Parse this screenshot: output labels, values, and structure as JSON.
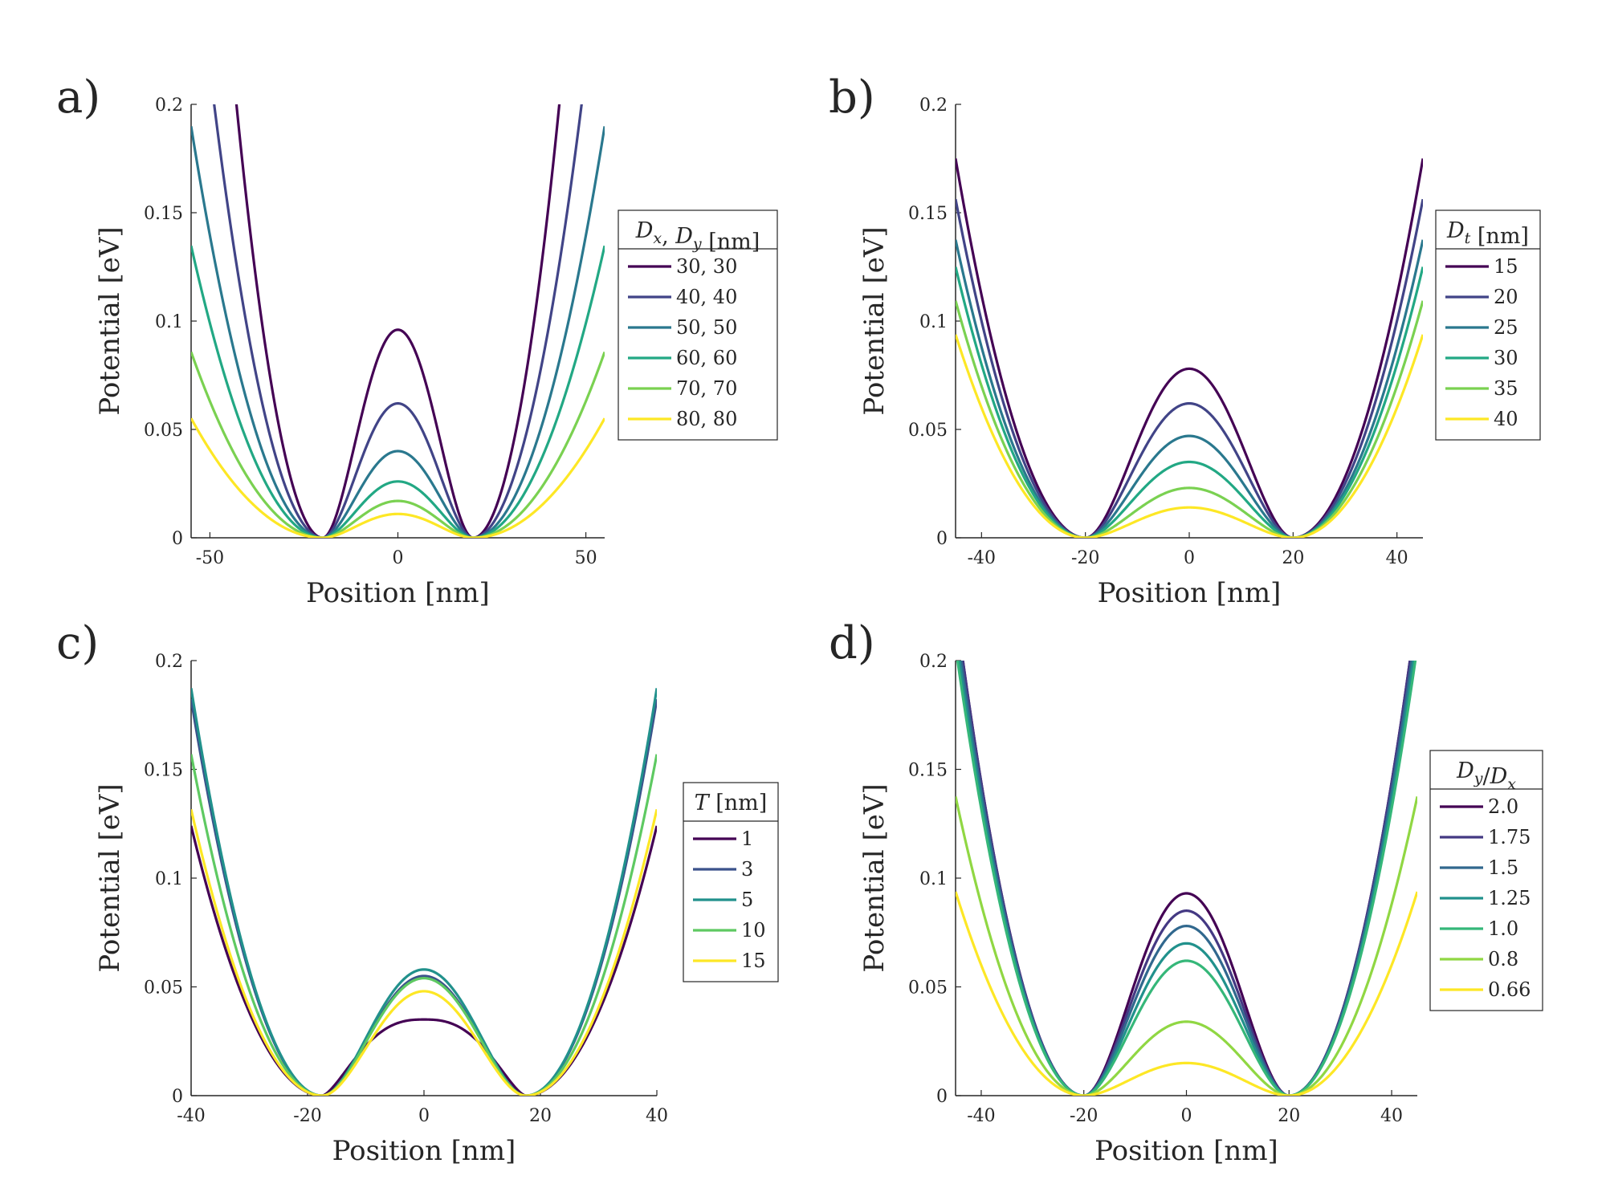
{
  "chart_data": [
    {
      "type": "line",
      "panel_label": "a)",
      "xlabel": "Position [nm]",
      "ylabel": "Potential [eV]",
      "xlim": [
        -55,
        55
      ],
      "ylim": [
        0,
        0.2
      ],
      "xticks": [
        -50,
        0,
        50
      ],
      "xtick_labels": [
        "-50",
        "0",
        "50"
      ],
      "yticks": [
        0,
        0.05,
        0.1,
        0.15,
        0.2
      ],
      "ytick_labels": [
        "0",
        "0.05",
        "0.1",
        "0.15",
        "0.2"
      ],
      "legend_title": "Dx, Dy [nm]",
      "legend_placement": "right",
      "model": {
        "kind": "double-well",
        "minima": [
          -20,
          20
        ]
      },
      "series": [
        {
          "name": "30, 30",
          "color": "#440154",
          "barrier": 0.096,
          "a": 0.00038
        },
        {
          "name": "40, 40",
          "color": "#414487",
          "barrier": 0.062,
          "a": 0.00024
        },
        {
          "name": "50, 50",
          "color": "#2a788e",
          "barrier": 0.04,
          "a": 0.000155
        },
        {
          "name": "60, 60",
          "color": "#22a884",
          "barrier": 0.026,
          "a": 0.00011
        },
        {
          "name": "70, 70",
          "color": "#7ad151",
          "barrier": 0.017,
          "a": 7e-05
        },
        {
          "name": "80, 80",
          "color": "#fde725",
          "barrier": 0.011,
          "a": 4.5e-05
        }
      ]
    },
    {
      "type": "line",
      "panel_label": "b)",
      "xlabel": "Position [nm]",
      "ylabel": "Potential [eV]",
      "xlim": [
        -45,
        45
      ],
      "ylim": [
        0,
        0.2
      ],
      "xticks": [
        -40,
        -20,
        0,
        20,
        40
      ],
      "xtick_labels": [
        "-40",
        "-20",
        "0",
        "20",
        "40"
      ],
      "yticks": [
        0,
        0.05,
        0.1,
        0.15,
        0.2
      ],
      "ytick_labels": [
        "0",
        "0.05",
        "0.1",
        "0.15",
        "0.2"
      ],
      "legend_title": "Dt [nm]",
      "legend_placement": "right",
      "model": {
        "kind": "double-well",
        "minima": [
          -20,
          20
        ]
      },
      "series": [
        {
          "name": "15",
          "color": "#440154",
          "barrier": 0.078,
          "a": 0.00028
        },
        {
          "name": "20",
          "color": "#414487",
          "barrier": 0.062,
          "a": 0.00025
        },
        {
          "name": "25",
          "color": "#2a788e",
          "barrier": 0.047,
          "a": 0.00022
        },
        {
          "name": "30",
          "color": "#22a884",
          "barrier": 0.035,
          "a": 0.0002
        },
        {
          "name": "35",
          "color": "#7ad151",
          "barrier": 0.023,
          "a": 0.000175
        },
        {
          "name": "40",
          "color": "#fde725",
          "barrier": 0.014,
          "a": 0.00015
        }
      ]
    },
    {
      "type": "line",
      "panel_label": "c)",
      "xlabel": "Position [nm]",
      "ylabel": "Potential [eV]",
      "xlim": [
        -40,
        40
      ],
      "ylim": [
        0,
        0.2
      ],
      "xticks": [
        -40,
        -20,
        0,
        20,
        40
      ],
      "xtick_labels": [
        "-40",
        "-20",
        "0",
        "20",
        "40"
      ],
      "yticks": [
        0,
        0.05,
        0.1,
        0.15,
        0.2
      ],
      "ytick_labels": [
        "0",
        "0.05",
        "0.1",
        "0.15",
        "0.2"
      ],
      "legend_title": "T [nm]",
      "legend_placement": "right",
      "model": {
        "kind": "double-well",
        "minima": [
          -17.5,
          17.5
        ]
      },
      "series": [
        {
          "name": "1",
          "color": "#440154",
          "barrier": 0.035,
          "a": 0.000245,
          "flat": 6
        },
        {
          "name": "3",
          "color": "#3b528b",
          "barrier": 0.055,
          "a": 0.00036
        },
        {
          "name": "5",
          "color": "#21918c",
          "barrier": 0.058,
          "a": 0.00037
        },
        {
          "name": "10",
          "color": "#5ec962",
          "barrier": 0.054,
          "a": 0.00031
        },
        {
          "name": "15",
          "color": "#fde725",
          "barrier": 0.048,
          "a": 0.00026
        }
      ]
    },
    {
      "type": "line",
      "panel_label": "d)",
      "xlabel": "Position [nm]",
      "ylabel": "Potential [eV]",
      "xlim": [
        -45,
        45
      ],
      "ylim": [
        0,
        0.2
      ],
      "xticks": [
        -40,
        -20,
        0,
        20,
        40
      ],
      "xtick_labels": [
        "-40",
        "-20",
        "0",
        "20",
        "40"
      ],
      "yticks": [
        0,
        0.05,
        0.1,
        0.15,
        0.2
      ],
      "ytick_labels": [
        "0",
        "0.05",
        "0.1",
        "0.15",
        "0.2"
      ],
      "legend_title": "Dy/Dx",
      "legend_placement": "right",
      "model": {
        "kind": "double-well",
        "minima": [
          -20,
          20
        ]
      },
      "series": [
        {
          "name": "2.0",
          "color": "#440154",
          "barrier": 0.093,
          "a": 0.00036
        },
        {
          "name": "1.75",
          "color": "#443983",
          "barrier": 0.085,
          "a": 0.00036
        },
        {
          "name": "1.5",
          "color": "#31688e",
          "barrier": 0.078,
          "a": 0.00035
        },
        {
          "name": "1.25",
          "color": "#21918c",
          "barrier": 0.07,
          "a": 0.00034
        },
        {
          "name": "1.0",
          "color": "#35b779",
          "barrier": 0.062,
          "a": 0.00033
        },
        {
          "name": "0.8",
          "color": "#90d743",
          "barrier": 0.034,
          "a": 0.00022
        },
        {
          "name": "0.66",
          "color": "#fde725",
          "barrier": 0.015,
          "a": 0.00015
        }
      ]
    }
  ]
}
